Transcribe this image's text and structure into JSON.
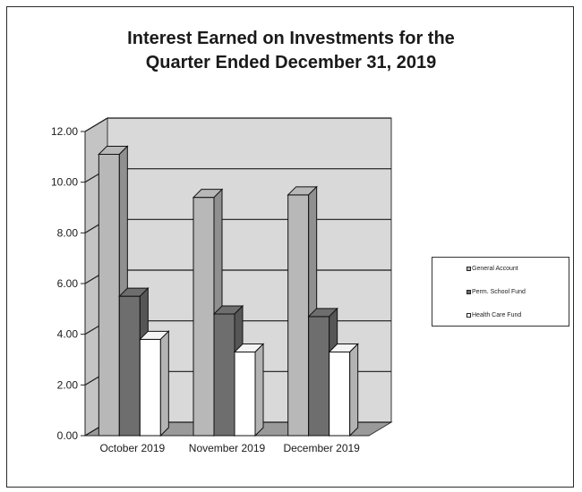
{
  "colors": {
    "general_account": "#b8b8b8",
    "perm_school_fund": "#6e6e6e",
    "health_care_fund": "#ffffff",
    "wall": "#d9d9d9",
    "floor": "#9a9a9a"
  },
  "chart_data": {
    "type": "bar",
    "title_line1": "Interest Earned on Investments for the",
    "title_line2": "Quarter Ended December 31, 2019",
    "categories": [
      "October 2019",
      "November 2019",
      "December 2019"
    ],
    "series": [
      {
        "name": "General Account",
        "values": [
          11.1,
          9.4,
          9.5
        ]
      },
      {
        "name": "Perm. School Fund",
        "values": [
          5.5,
          4.8,
          4.7
        ]
      },
      {
        "name": "Health Care Fund",
        "values": [
          3.8,
          3.3,
          3.3
        ]
      }
    ],
    "yticks": [
      "0.00",
      "2.00",
      "4.00",
      "6.00",
      "8.00",
      "10.00",
      "12.00"
    ],
    "ylim": [
      0,
      12
    ],
    "grid": true,
    "legend_position": "right",
    "style": "3d-clustered-bar"
  }
}
